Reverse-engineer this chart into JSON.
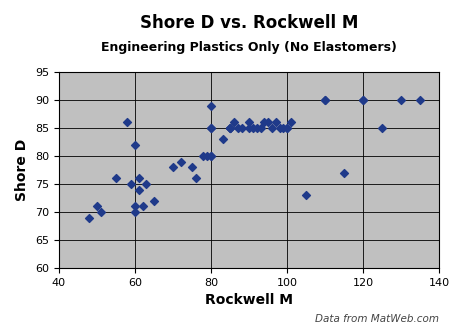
{
  "title": "Shore D vs. Rockwell M",
  "subtitle": "Engineering Plastics Only (No Elastomers)",
  "xlabel": "Rockwell M",
  "ylabel": "Shore D",
  "watermark": "Data from MatWeb.com",
  "x": [
    48,
    50,
    51,
    55,
    58,
    59,
    60,
    60,
    60,
    61,
    61,
    62,
    63,
    65,
    70,
    72,
    75,
    76,
    78,
    79,
    80,
    80,
    80,
    80,
    80,
    83,
    85,
    85,
    85,
    85,
    86,
    87,
    88,
    90,
    90,
    91,
    92,
    93,
    94,
    95,
    96,
    97,
    98,
    99,
    100,
    100,
    101,
    105,
    110,
    110,
    115,
    120,
    120,
    125,
    130,
    135
  ],
  "y": [
    69,
    71,
    70,
    76,
    86,
    75,
    71,
    70,
    82,
    76,
    74,
    71,
    75,
    72,
    78,
    79,
    78,
    76,
    80,
    80,
    85,
    85,
    80,
    80,
    89,
    83,
    85,
    85,
    85,
    85,
    86,
    85,
    85,
    86,
    85,
    85,
    85,
    85,
    86,
    86,
    85,
    86,
    85,
    85,
    85,
    85,
    86,
    73,
    90,
    90,
    77,
    90,
    90,
    85,
    90,
    90
  ],
  "marker_color": "#1F3A8A",
  "marker": "D",
  "marker_size": 4,
  "xlim": [
    40,
    140
  ],
  "ylim": [
    60,
    95
  ],
  "xticks": [
    40,
    60,
    80,
    100,
    120,
    140
  ],
  "yticks": [
    60,
    65,
    70,
    75,
    80,
    85,
    90,
    95
  ],
  "background_color": "#C0C0C0",
  "grid_color": "#000000",
  "title_fontsize": 12,
  "subtitle_fontsize": 9,
  "axis_label_fontsize": 10,
  "tick_fontsize": 8,
  "watermark_fontsize": 7.5
}
